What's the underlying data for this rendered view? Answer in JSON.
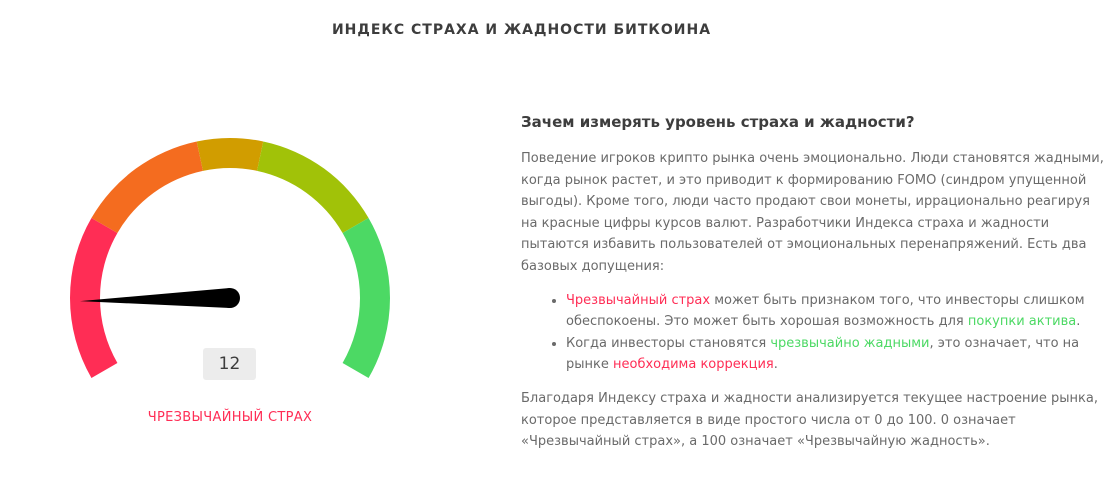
{
  "page": {
    "title": "ИНДЕКС СТРАХА И ЖАДНОСТИ БИТКОИНА"
  },
  "gauge": {
    "value": 12,
    "value_text": "12",
    "min": 0,
    "max": 100,
    "label": "ЧРЕЗВЫЧАЙНЫЙ СТРАХ",
    "label_color": "#ff2d55",
    "segments": [
      {
        "from": 0,
        "to": 25,
        "color": "#ff2d55"
      },
      {
        "from": 25,
        "to": 45,
        "color": "#f46c1f"
      },
      {
        "from": 45,
        "to": 55,
        "color": "#d19d00"
      },
      {
        "from": 55,
        "to": 75,
        "color": "#a1c208"
      },
      {
        "from": 75,
        "to": 100,
        "color": "#4cd964"
      }
    ]
  },
  "article": {
    "heading": "Зачем измерять уровень страха и жадности?",
    "intro": "Поведение игроков крипто рынка очень эмоционально. Люди становятся жадными, когда рынок растет, и это приводит к формированию FOMO (синдром упущенной выгоды). Кроме того, люди часто продают свои монеты, иррационально реагируя на красные цифры курсов валют. Разработчики Индекса страха и жадности пытаются избавить пользователей от эмоциональных перенапряжений. Есть два базовых допущения:",
    "bullets": [
      {
        "highlight1": "Чрезвычайный страх",
        "text1": " может быть признаком того, что инвесторы слишком обеспокоены. Это может быть хорошая возможность для ",
        "highlight2": "покупки актива",
        "text2": "."
      },
      {
        "text1": "Когда инвесторы становятся ",
        "highlight1": "чрезвычайно жадными",
        "text2": ", это означает, что на рынке ",
        "highlight2": "необходима коррекция",
        "text3": "."
      }
    ],
    "outro": "Благодаря Индексу страха и жадности анализируется текущее настроение рынка, которое представляется в виде простого числа от 0 до 100. 0 означает «Чрезвычайный страх», а 100 означает «Чрезвычайную жадность»."
  },
  "colors": {
    "fear": "#ff2d55",
    "greed": "#4cd964"
  }
}
